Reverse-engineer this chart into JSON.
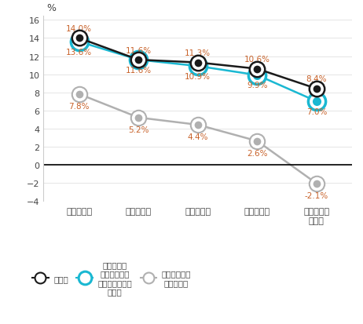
{
  "x_labels": [
    "二零一三年",
    "二零一四年",
    "二零一五年",
    "二零一六年",
    "二零一七年\n上半年"
  ],
  "series_gross": [
    14.0,
    11.6,
    11.3,
    10.6,
    8.4
  ],
  "series_ebitda": [
    13.6,
    11.6,
    10.9,
    9.9,
    7.0
  ],
  "series_net": [
    7.8,
    5.2,
    4.4,
    2.6,
    -2.1
  ],
  "labels_gross": [
    "14.0%",
    "11.6%",
    "11.3%",
    "10.6%",
    "8.4%"
  ],
  "labels_ebitda": [
    "13.6%",
    "11.6%",
    "10.9%",
    "9.9%",
    "7.0%"
  ],
  "labels_net": [
    "7.8%",
    "5.2%",
    "4.4%",
    "2.6%",
    "-2.1%"
  ],
  "label_color": "#c8622a",
  "color_gross": "#1a1a1a",
  "color_ebitda": "#1ab8d2",
  "color_net": "#b0b0b0",
  "ylabel": "%",
  "ylim": [
    -4,
    16.5
  ],
  "yticks": [
    -4,
    -2,
    0,
    2,
    4,
    6,
    8,
    10,
    12,
    14,
    16
  ],
  "legend_gross": "毛利率",
  "legend_ebitda": "穅息折舊及\n攞銷以及分佔\n聯營公司業績前\n利潤率",
  "legend_net": "本公司擁有人\n應佔純利率"
}
